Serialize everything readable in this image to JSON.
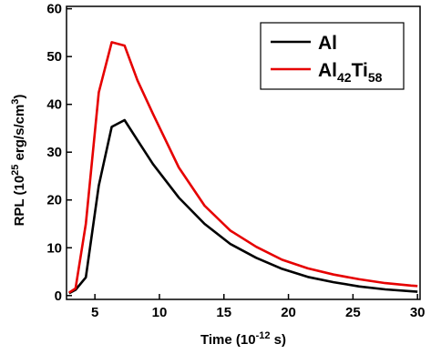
{
  "chart_data": {
    "type": "line",
    "title": "",
    "xlabel": "Time (10",
    "xlabel_sup": "-12",
    "xlabel_tail": " s)",
    "ylabel": "RPL (10",
    "ylabel_sup": "25",
    "ylabel_mid": " erg/s/cm",
    "ylabel_sup2": "3",
    "ylabel_tail": ")",
    "xlim": [
      2.8,
      30.2
    ],
    "ylim": [
      -0.8,
      60.5
    ],
    "xticks": [
      5,
      10,
      15,
      20,
      25,
      30
    ],
    "yticks": [
      0,
      10,
      20,
      30,
      40,
      50,
      60
    ],
    "grid": false,
    "legend_position": "top-right",
    "series": [
      {
        "name": "Al",
        "color": "#000000",
        "x": [
          3.0,
          3.5,
          4.3,
          5.3,
          6.3,
          7.3,
          8.3,
          9.5,
          11.5,
          13.5,
          15.5,
          17.5,
          19.5,
          21.5,
          23.5,
          25.5,
          27.5,
          29.5,
          30.0
        ],
        "y": [
          0.5,
          1.2,
          3.8,
          23.0,
          35.3,
          36.7,
          32.5,
          27.5,
          20.5,
          15.0,
          10.8,
          7.9,
          5.6,
          3.9,
          2.8,
          1.9,
          1.3,
          0.9,
          0.8
        ]
      },
      {
        "name": "Al",
        "name_sub1": "42",
        "name_mid": "Ti",
        "name_sub2": "58",
        "color": "#e60000",
        "x": [
          3.0,
          3.5,
          4.3,
          5.3,
          6.3,
          7.3,
          8.3,
          9.5,
          11.5,
          13.5,
          15.5,
          17.5,
          19.5,
          21.5,
          23.5,
          25.5,
          27.5,
          29.5,
          30.0
        ],
        "y": [
          0.6,
          1.5,
          15.0,
          42.5,
          53.0,
          52.3,
          45.0,
          38.0,
          26.8,
          18.8,
          13.6,
          10.2,
          7.5,
          5.7,
          4.4,
          3.4,
          2.6,
          2.1,
          2.0
        ]
      }
    ]
  }
}
